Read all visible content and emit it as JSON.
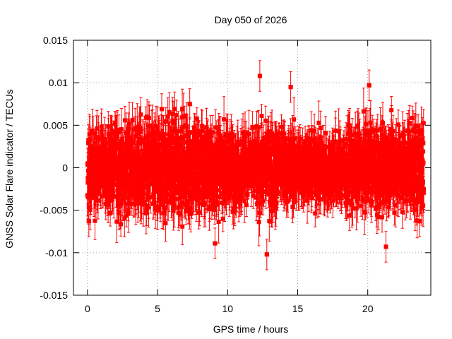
{
  "chart_data": {
    "type": "scatter",
    "title": "Day 050 of 2026",
    "xlabel": "GPS time / hours",
    "ylabel": "GNSS Solar Flare indicator / TECUs",
    "xlim": [
      -1,
      24.5
    ],
    "ylim": [
      -0.015,
      0.015
    ],
    "xticks": [
      0,
      5,
      10,
      15,
      20
    ],
    "xtick_labels": [
      "0",
      "5",
      "10",
      "15",
      "20"
    ],
    "yticks": [
      -0.015,
      -0.01,
      -0.005,
      0,
      0.005,
      0.01,
      0.015
    ],
    "ytick_labels": [
      "-0.015",
      "-0.01",
      "-0.005",
      "0",
      "0.005",
      "0.01",
      "0.015"
    ],
    "grid": true,
    "marker": "square",
    "error_bars": true,
    "colors": {
      "series": "#ff0000",
      "grid": "#a0a0a0",
      "axis": "#000000"
    },
    "series": [
      {
        "x_range": [
          0,
          24
        ],
        "y_typical_range": [
          -0.005,
          0.005
        ],
        "sample_points": [
          {
            "x": 12.3,
            "y": 0.0108
          },
          {
            "x": 12.8,
            "y": -0.0102
          },
          {
            "x": 14.5,
            "y": 0.0095
          },
          {
            "x": 20.1,
            "y": 0.0097
          },
          {
            "x": 21.3,
            "y": -0.0093
          },
          {
            "x": 9.1,
            "y": -0.0089
          },
          {
            "x": 0.1,
            "y": -0.0063
          },
          {
            "x": 5.3,
            "y": 0.0069
          },
          {
            "x": 7.3,
            "y": 0.0075
          },
          {
            "x": 23.7,
            "y": -0.0063
          }
        ]
      }
    ]
  }
}
